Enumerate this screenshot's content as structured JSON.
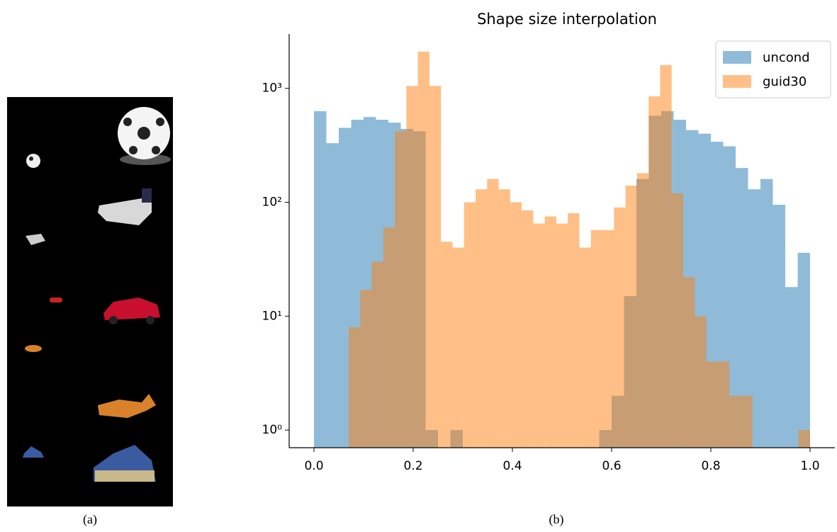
{
  "figure": {
    "caption_a": "(a)",
    "caption_b": "(b)"
  },
  "chart_data": {
    "type": "histogram",
    "title": "Shape size interpolation",
    "log_y": true,
    "legend": "upper right",
    "xlim": [
      -0.05,
      1.05
    ],
    "ylim": [
      0.7,
      3000
    ],
    "xticks": [
      {
        "value": 0,
        "label": "0.0"
      },
      0.2,
      0.4,
      0.6,
      0.8,
      {
        "value": 1,
        "label": "1.0"
      }
    ],
    "yticks": [
      {
        "value": 1,
        "label": "10⁰"
      },
      {
        "value": 10,
        "label": "10¹"
      },
      {
        "value": 100,
        "label": "10²"
      },
      {
        "value": 1000,
        "label": "10³"
      }
    ],
    "series": [
      {
        "name": "uncond",
        "color": "#1f77b4",
        "opacity": 0.5,
        "bins": [
          0,
          0.025,
          0.05,
          0.075,
          0.1,
          0.125,
          0.15,
          0.175,
          0.2,
          0.225,
          0.25,
          0.275,
          0.3,
          0.325,
          0.35,
          0.375,
          0.4,
          0.425,
          0.45,
          0.475,
          0.5,
          0.525,
          0.55,
          0.575,
          0.6,
          0.625,
          0.65,
          0.675,
          0.7,
          0.725,
          0.75,
          0.775,
          0.8,
          0.825,
          0.85,
          0.875,
          0.9,
          0.925,
          0.95,
          0.975,
          1.0
        ],
        "values": [
          630,
          330,
          450,
          530,
          560,
          530,
          500,
          440,
          420,
          1,
          0,
          1,
          0,
          0,
          0,
          0,
          0,
          0,
          0,
          0,
          0,
          0,
          0,
          1,
          2,
          15,
          160,
          575,
          630,
          530,
          430,
          400,
          340,
          310,
          200,
          130,
          160,
          95,
          18,
          36
        ]
      },
      {
        "name": "guid30",
        "color": "#ff7f0e",
        "opacity": 0.5,
        "bins": [
          0.07,
          0.09325,
          0.1165,
          0.13975,
          0.163,
          0.18625,
          0.2095,
          0.23275,
          0.256,
          0.27925,
          0.3025,
          0.32575,
          0.349,
          0.37225,
          0.3955,
          0.41875,
          0.442,
          0.46525,
          0.4885,
          0.51175,
          0.535,
          0.55825,
          0.5815,
          0.60475,
          0.628,
          0.65125,
          0.6745,
          0.69775,
          0.721,
          0.74425,
          0.7675,
          0.79075,
          0.814,
          0.83725,
          0.8605,
          0.88375,
          0.907,
          0.93025,
          0.9535,
          0.97675,
          1.0
        ],
        "values": [
          8,
          17,
          30,
          60,
          420,
          1050,
          2100,
          1050,
          45,
          40,
          100,
          130,
          160,
          130,
          100,
          85,
          65,
          75,
          65,
          80,
          40,
          57,
          57,
          90,
          140,
          180,
          850,
          1600,
          120,
          22,
          10,
          4,
          4,
          2,
          2,
          0,
          0,
          0,
          0,
          1
        ]
      }
    ]
  }
}
